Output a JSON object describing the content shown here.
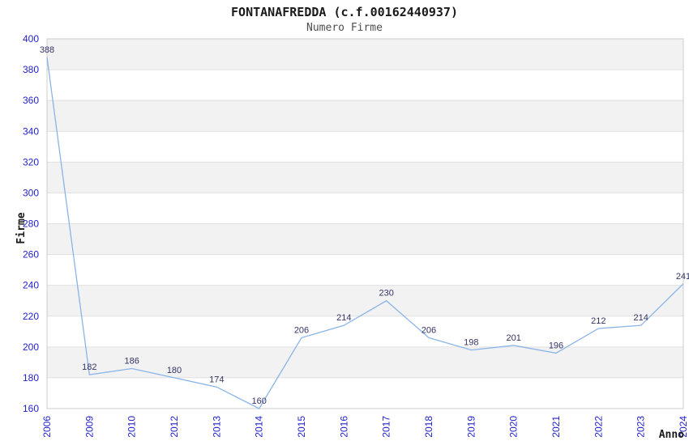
{
  "chart_data": {
    "type": "line",
    "title": "FONTANAFREDDA (c.f.00162440937)",
    "subtitle": "Numero Firme",
    "xlabel": "Anno",
    "ylabel": "Firme",
    "categories": [
      "2006",
      "2009",
      "2010",
      "2012",
      "2013",
      "2014",
      "2015",
      "2016",
      "2017",
      "2018",
      "2019",
      "2020",
      "2021",
      "2022",
      "2023",
      "2024"
    ],
    "values": [
      388,
      182,
      186,
      180,
      174,
      160,
      206,
      214,
      230,
      206,
      198,
      201,
      196,
      212,
      214,
      241
    ],
    "ylim": [
      160,
      400
    ],
    "yticks": [
      160,
      180,
      200,
      220,
      240,
      260,
      280,
      300,
      320,
      340,
      360,
      380,
      400
    ],
    "grid": true,
    "legend_position": "none",
    "band_pattern": "alternating horizontal bands, gray band at top (380-400) alternating downward",
    "colors": {
      "line": "#8ab4e8",
      "tick_label": "#2222cc",
      "point_label": "#333366",
      "band": "#f2f2f2",
      "gridline": "#e0e0e0",
      "plot_border": "#cccccc",
      "title": "#1a1a1a",
      "subtitle": "#4d4d4d",
      "axis_title": "#1a1a1a",
      "background": "#ffffff"
    }
  }
}
